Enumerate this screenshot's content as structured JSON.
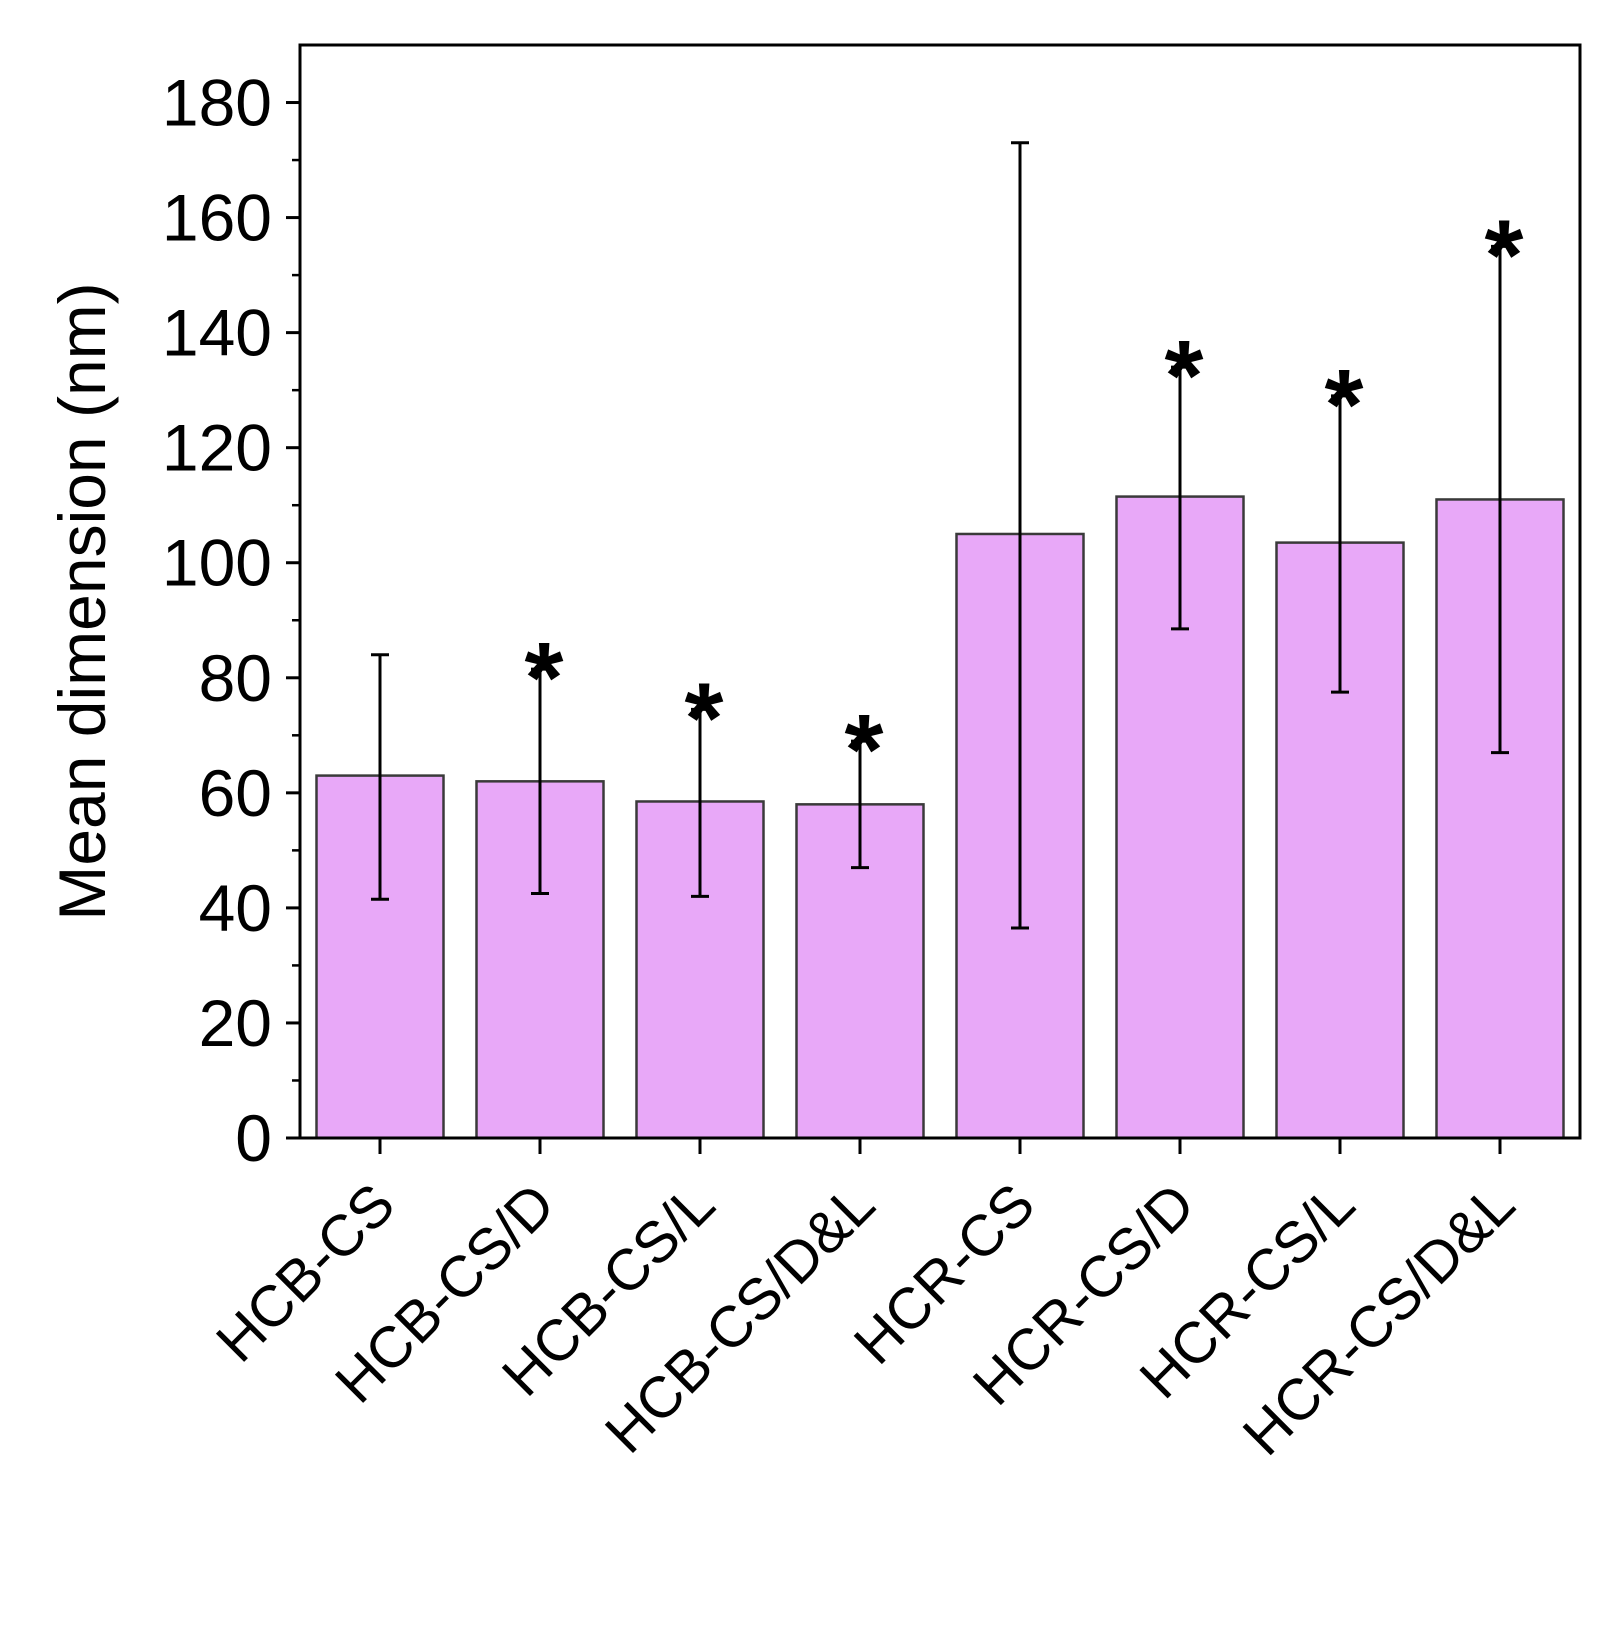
{
  "chart_data": {
    "type": "bar",
    "title": "",
    "xlabel": "",
    "ylabel": "Mean dimension (nm)",
    "ylim": [
      0,
      190
    ],
    "yticks": [
      0,
      20,
      40,
      60,
      80,
      100,
      120,
      140,
      160,
      180
    ],
    "ytick_labels": [
      "0",
      "20",
      "40",
      "60",
      "80",
      "100",
      "120",
      "140",
      "160",
      "180"
    ],
    "y_minor_step": 10,
    "grid": false,
    "categories": [
      "HCB-CS",
      "HCB-CS/D",
      "HCB-CS/L",
      "HCB-CS/D&L",
      "HCR-CS",
      "HCR-CS/D",
      "HCR-CS/L",
      "HCR-CS/D&L"
    ],
    "values": [
      63,
      62,
      58.5,
      58,
      105,
      111.5,
      103.5,
      111
    ],
    "error_lower": [
      41.5,
      42.5,
      42,
      47,
      36.5,
      88.5,
      77.5,
      67
    ],
    "error_upper": [
      84,
      81.5,
      74.5,
      69,
      173,
      134,
      129,
      155
    ],
    "significance": [
      "",
      "*",
      "*",
      "*",
      "",
      "*",
      "*",
      "*"
    ],
    "bar_color": "#e8a8f8",
    "bar_edge_color": "#3a3a3a",
    "errorbar_color": "#000000"
  }
}
